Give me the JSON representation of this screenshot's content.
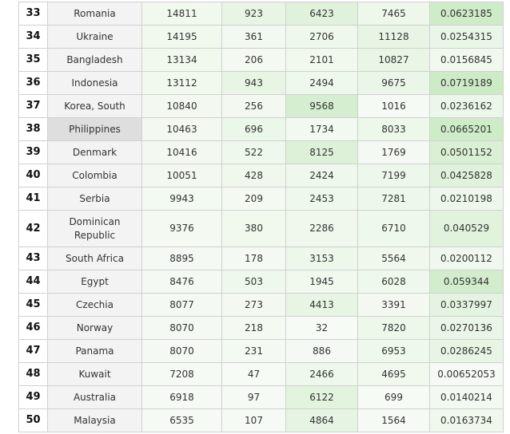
{
  "colors": {
    "grid_border": "#d0d0d0",
    "country_bg": "#f3f3f3",
    "selected_country_bg": "#dedede",
    "green_base": [
      232,
      245,
      230
    ],
    "green_strong": [
      212,
      238,
      205
    ]
  },
  "rows": [
    {
      "rank": "33",
      "country": "Romania",
      "c1": "14811",
      "c2": "923",
      "c3": "6423",
      "c4": "7465",
      "rate": "0.0623185",
      "shade": {
        "c1": 0.15,
        "c2": 0.35,
        "c3": 0.55,
        "c4": 0.25,
        "rate": 0.95
      }
    },
    {
      "rank": "34",
      "country": "Ukraine",
      "c1": "14195",
      "c2": "361",
      "c3": "2706",
      "c4": "11128",
      "rate": "0.0254315",
      "shade": {
        "c1": 0.15,
        "c2": 0.12,
        "c3": 0.2,
        "c4": 0.35,
        "rate": 0.3
      }
    },
    {
      "rank": "35",
      "country": "Bangladesh",
      "c1": "13134",
      "c2": "206",
      "c3": "2101",
      "c4": "10827",
      "rate": "0.0156845",
      "shade": {
        "c1": 0.14,
        "c2": 0.08,
        "c3": 0.15,
        "c4": 0.34,
        "rate": 0.15
      }
    },
    {
      "rank": "36",
      "country": "Indonesia",
      "c1": "13112",
      "c2": "943",
      "c3": "2494",
      "c4": "9675",
      "rate": "0.0719189",
      "shade": {
        "c1": 0.14,
        "c2": 0.36,
        "c3": 0.18,
        "c4": 0.3,
        "rate": 1.0
      }
    },
    {
      "rank": "37",
      "country": "Korea, South",
      "c1": "10840",
      "c2": "256",
      "c3": "9568",
      "c4": "1016",
      "rate": "0.0236162",
      "shade": {
        "c1": 0.1,
        "c2": 0.1,
        "c3": 0.8,
        "c4": 0.05,
        "rate": 0.28
      }
    },
    {
      "rank": "38",
      "country": "Philippines",
      "c1": "10463",
      "c2": "696",
      "c3": "1734",
      "c4": "8033",
      "rate": "0.0665201",
      "shade": {
        "c1": 0.1,
        "c2": 0.28,
        "c3": 0.12,
        "c4": 0.25,
        "rate": 0.95
      },
      "selected": true
    },
    {
      "rank": "39",
      "country": "Denmark",
      "c1": "10416",
      "c2": "522",
      "c3": "8125",
      "c4": "1769",
      "rate": "0.0501152",
      "shade": {
        "c1": 0.1,
        "c2": 0.2,
        "c3": 0.65,
        "c4": 0.06,
        "rate": 0.7
      }
    },
    {
      "rank": "40",
      "country": "Colombia",
      "c1": "10051",
      "c2": "428",
      "c3": "2424",
      "c4": "7199",
      "rate": "0.0425828",
      "shade": {
        "c1": 0.1,
        "c2": 0.16,
        "c3": 0.18,
        "c4": 0.22,
        "rate": 0.55
      }
    },
    {
      "rank": "41",
      "country": "Serbia",
      "c1": "9943",
      "c2": "209",
      "c3": "2453",
      "c4": "7281",
      "rate": "0.0210198",
      "shade": {
        "c1": 0.09,
        "c2": 0.08,
        "c3": 0.18,
        "c4": 0.22,
        "rate": 0.22
      }
    },
    {
      "rank": "42",
      "country": "Dominican Republic",
      "c1": "9376",
      "c2": "380",
      "c3": "2286",
      "c4": "6710",
      "rate": "0.040529",
      "shade": {
        "c1": 0.08,
        "c2": 0.14,
        "c3": 0.17,
        "c4": 0.2,
        "rate": 0.52
      }
    },
    {
      "rank": "43",
      "country": "South Africa",
      "c1": "8895",
      "c2": "178",
      "c3": "3153",
      "c4": "5564",
      "rate": "0.0200112",
      "shade": {
        "c1": 0.07,
        "c2": 0.07,
        "c3": 0.24,
        "c4": 0.16,
        "rate": 0.2
      }
    },
    {
      "rank": "44",
      "country": "Egypt",
      "c1": "8476",
      "c2": "503",
      "c3": "1945",
      "c4": "6028",
      "rate": "0.059344",
      "shade": {
        "c1": 0.07,
        "c2": 0.2,
        "c3": 0.14,
        "c4": 0.18,
        "rate": 0.88
      }
    },
    {
      "rank": "45",
      "country": "Czechia",
      "c1": "8077",
      "c2": "273",
      "c3": "4413",
      "c4": "3391",
      "rate": "0.0337997",
      "shade": {
        "c1": 0.06,
        "c2": 0.1,
        "c3": 0.35,
        "c4": 0.1,
        "rate": 0.42
      }
    },
    {
      "rank": "46",
      "country": "Norway",
      "c1": "8070",
      "c2": "218",
      "c3": "32",
      "c4": "7820",
      "rate": "0.0270136",
      "shade": {
        "c1": 0.06,
        "c2": 0.08,
        "c3": 0.0,
        "c4": 0.24,
        "rate": 0.32
      }
    },
    {
      "rank": "47",
      "country": "Panama",
      "c1": "8070",
      "c2": "231",
      "c3": "886",
      "c4": "6953",
      "rate": "0.0286245",
      "shade": {
        "c1": 0.06,
        "c2": 0.09,
        "c3": 0.06,
        "c4": 0.21,
        "rate": 0.35
      }
    },
    {
      "rank": "48",
      "country": "Kuwait",
      "c1": "7208",
      "c2": "47",
      "c3": "2466",
      "c4": "4695",
      "rate": "0.00652053",
      "shade": {
        "c1": 0.05,
        "c2": 0.02,
        "c3": 0.18,
        "c4": 0.14,
        "rate": 0.05
      }
    },
    {
      "rank": "49",
      "country": "Australia",
      "c1": "6918",
      "c2": "97",
      "c3": "6122",
      "c4": "699",
      "rate": "0.0140214",
      "shade": {
        "c1": 0.05,
        "c2": 0.04,
        "c3": 0.5,
        "c4": 0.03,
        "rate": 0.13
      }
    },
    {
      "rank": "50",
      "country": "Malaysia",
      "c1": "6535",
      "c2": "107",
      "c3": "4864",
      "c4": "1564",
      "rate": "0.0163734",
      "shade": {
        "c1": 0.05,
        "c2": 0.04,
        "c3": 0.4,
        "c4": 0.05,
        "rate": 0.16
      }
    }
  ]
}
